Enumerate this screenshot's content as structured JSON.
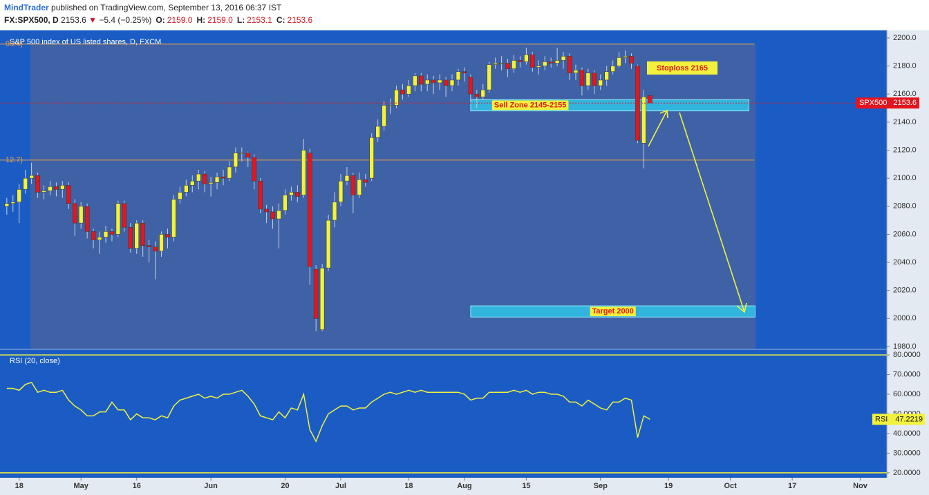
{
  "header": {
    "author": "MindTrader",
    "published": "published on TradingView.com, September 13, 2016 06:37 IST",
    "symbol": "FX:SPX500, D",
    "last": "2153.6",
    "arrow": "▼",
    "change": "−5.4 (−0.25%)",
    "ohlc": [
      {
        "label": "O:",
        "value": "2159.0"
      },
      {
        "label": "H:",
        "value": "2159.0"
      },
      {
        "label": "L:",
        "value": "2153.1"
      },
      {
        "label": "C:",
        "value": "2153.6"
      }
    ]
  },
  "annotations": {
    "stoploss": "Stoploss 2165"
  },
  "chart_data": [
    {
      "type": "candlestick",
      "title": "S&P 500 index of US listed shares, D, FXCM",
      "price_label": "SPX500",
      "up_color": "#f2f23c",
      "down_color": "#e3161f",
      "price_line_color": "#e3161f",
      "open": [
        2080,
        2082,
        2083,
        2092,
        2100,
        2102,
        2090,
        2091,
        2094,
        2092,
        2095,
        2082,
        2068,
        2080,
        2062,
        2056,
        2058,
        2062,
        2060,
        2082,
        2065,
        2050,
        2068,
        2052,
        2051,
        2048,
        2060,
        2058,
        2085,
        2090,
        2095,
        2098,
        2103,
        2096,
        2097,
        2101,
        2100,
        2108,
        2118,
        2118,
        2115,
        2098,
        2078,
        2076,
        2071,
        2077,
        2088,
        2090,
        2088,
        2118,
        2035,
        1992,
        2036,
        2070,
        2083,
        2098,
        2102,
        2088,
        2099,
        2100,
        2129,
        2137,
        2152,
        2152,
        2163,
        2160,
        2166,
        2173,
        2167,
        2170,
        2168,
        2170,
        2166,
        2170,
        2176,
        2172,
        2160,
        2158,
        2163,
        2181,
        2182,
        2182,
        2178,
        2184,
        2183,
        2188,
        2179,
        2180,
        2183,
        2182,
        2184,
        2187,
        2175,
        2177,
        2166,
        2175,
        2166,
        2170,
        2176,
        2180,
        2186,
        2187,
        2180,
        2125,
        2159.0
      ],
      "high": [
        2086,
        2088,
        2096,
        2106,
        2111,
        2104,
        2095,
        2098,
        2097,
        2098,
        2097,
        2085,
        2083,
        2082,
        2064,
        2062,
        2066,
        2064,
        2084,
        2084,
        2068,
        2070,
        2070,
        2056,
        2055,
        2062,
        2064,
        2088,
        2094,
        2099,
        2102,
        2106,
        2105,
        2101,
        2104,
        2106,
        2112,
        2122,
        2122,
        2119,
        2117,
        2100,
        2081,
        2080,
        2082,
        2092,
        2094,
        2095,
        2128,
        2121,
        2038,
        2039,
        2074,
        2090,
        2103,
        2108,
        2104,
        2104,
        2103,
        2132,
        2142,
        2155,
        2157,
        2166,
        2167,
        2170,
        2175,
        2175,
        2174,
        2173,
        2174,
        2172,
        2174,
        2178,
        2179,
        2174,
        2163,
        2167,
        2183,
        2186,
        2187,
        2185,
        2188,
        2187,
        2193,
        2190,
        2184,
        2187,
        2186,
        2193,
        2190,
        2189,
        2181,
        2179,
        2178,
        2177,
        2174,
        2180,
        2184,
        2190,
        2191,
        2189,
        2181,
        2163,
        2159.0
      ],
      "low": [
        2074,
        2076,
        2068,
        2089,
        2096,
        2086,
        2085,
        2088,
        2087,
        2086,
        2078,
        2059,
        2064,
        2057,
        2050,
        2046,
        2054,
        2055,
        2058,
        2062,
        2047,
        2046,
        2044,
        2040,
        2028,
        2044,
        2050,
        2055,
        2082,
        2087,
        2090,
        2092,
        2090,
        2087,
        2092,
        2095,
        2098,
        2104,
        2112,
        2108,
        2092,
        2075,
        2068,
        2064,
        2050,
        2074,
        2084,
        2083,
        2086,
        2024,
        1991,
        1991,
        2034,
        2065,
        2080,
        2095,
        2075,
        2086,
        2094,
        2098,
        2126,
        2134,
        2146,
        2150,
        2156,
        2158,
        2162,
        2162,
        2162,
        2160,
        2163,
        2158,
        2162,
        2166,
        2169,
        2155,
        2150,
        2156,
        2161,
        2178,
        2177,
        2172,
        2175,
        2179,
        2181,
        2176,
        2174,
        2177,
        2179,
        2180,
        2178,
        2170,
        2170,
        2159,
        2163,
        2160,
        2163,
        2166,
        2174,
        2179,
        2182,
        2178,
        2125,
        2107,
        2153.1
      ],
      "close": [
        2082,
        2083,
        2092,
        2100,
        2102,
        2090,
        2091,
        2094,
        2092,
        2095,
        2082,
        2068,
        2080,
        2062,
        2056,
        2058,
        2062,
        2060,
        2082,
        2065,
        2050,
        2068,
        2052,
        2051,
        2048,
        2060,
        2058,
        2085,
        2090,
        2095,
        2098,
        2103,
        2096,
        2097,
        2101,
        2100,
        2108,
        2118,
        2118,
        2115,
        2098,
        2078,
        2076,
        2071,
        2077,
        2088,
        2090,
        2087,
        2120,
        2037,
        2000,
        2036,
        2070,
        2083,
        2098,
        2102,
        2088,
        2099,
        2097,
        2129,
        2137,
        2152,
        2152,
        2163,
        2160,
        2166,
        2173,
        2167,
        2170,
        2168,
        2170,
        2166,
        2170,
        2176,
        2175,
        2160,
        2158,
        2163,
        2181,
        2182,
        2182,
        2178,
        2184,
        2183,
        2188,
        2179,
        2180,
        2183,
        2182,
        2184,
        2187,
        2175,
        2177,
        2166,
        2175,
        2166,
        2170,
        2176,
        2180,
        2186,
        2187,
        2182,
        2127,
        2158,
        2153.6
      ],
      "xlim": [
        -1.1,
        142.3
      ],
      "ylim": [
        1978.5,
        2205.4
      ],
      "yticks": [
        {
          "value": 1980,
          "label": "1980.0"
        },
        {
          "value": 2000,
          "label": "2000.0"
        },
        {
          "value": 2020,
          "label": "2020.0"
        },
        {
          "value": 2040,
          "label": "2040.0"
        },
        {
          "value": 2060,
          "label": "2060.0"
        },
        {
          "value": 2080,
          "label": "2080.0"
        },
        {
          "value": 2100,
          "label": "2100.0"
        },
        {
          "value": 2120,
          "label": "2120.0"
        },
        {
          "value": 2140,
          "label": "2140.0"
        },
        {
          "value": 2160,
          "label": "2160.0"
        },
        {
          "value": 2180,
          "label": "2180.0"
        },
        {
          "value": 2200,
          "label": "2200.0"
        }
      ],
      "levels": [
        {
          "label": "95.4)",
          "value": 2195.6,
          "color": "#e8a04c"
        },
        {
          "label": "12.7)",
          "value": 2112.9,
          "color": "#e8a04c"
        }
      ],
      "zones": [
        {
          "label": "Sell Zone 2145-2155",
          "from": 2148,
          "to": 2156,
          "start": 75,
          "end": 120
        },
        {
          "label": "Target 2000",
          "from": 2001,
          "to": 2009,
          "start": 75,
          "end": 121
        }
      ]
    },
    {
      "type": "line",
      "title": "RSI (20, close)",
      "series": [
        {
          "name": "RSI",
          "color": "#f2f23c",
          "values": [
            63,
            63,
            62,
            65,
            66,
            61,
            62,
            61,
            61,
            62,
            57,
            54,
            52,
            49,
            49,
            51,
            51,
            56,
            52,
            52,
            47,
            50,
            48,
            48,
            47,
            49,
            48,
            54,
            57,
            58,
            59,
            60,
            58,
            59,
            58,
            60,
            60,
            61,
            62,
            59,
            55,
            49,
            48,
            47,
            51,
            48,
            53,
            52,
            60,
            42,
            36,
            44,
            50,
            52,
            54,
            54,
            52,
            53,
            53,
            56,
            58,
            60,
            61,
            60,
            61,
            62,
            61,
            62,
            61,
            61,
            61,
            61,
            61,
            61,
            60,
            57,
            58,
            58,
            61,
            61,
            61,
            61,
            62,
            61,
            62,
            60,
            61,
            61,
            60,
            60,
            59,
            56,
            56,
            54,
            57,
            55,
            53,
            52,
            56,
            56,
            58,
            57,
            38,
            49,
            47.2219
          ]
        }
      ],
      "xlim": [
        -1.1,
        142.3
      ],
      "ylim": [
        18.2,
        82.5
      ],
      "yticks": [
        {
          "value": 20,
          "label": "20.0000"
        },
        {
          "value": 30,
          "label": "30.0000"
        },
        {
          "value": 40,
          "label": "40.0000"
        },
        {
          "value": 50,
          "label": "50.0000"
        },
        {
          "value": 60,
          "label": "60.0000"
        },
        {
          "value": 70,
          "label": "70.0000"
        },
        {
          "value": 80,
          "label": "80.0000"
        }
      ],
      "levels": [
        80,
        20
      ],
      "level_color": "#f2f23c",
      "xticks": [
        {
          "value": 2,
          "label": "18"
        },
        {
          "value": 12,
          "label": "May"
        },
        {
          "value": 21,
          "label": "16"
        },
        {
          "value": 33,
          "label": "Jun"
        },
        {
          "value": 45,
          "label": "20"
        },
        {
          "value": 54,
          "label": "Jul"
        },
        {
          "value": 65,
          "label": "18"
        },
        {
          "value": 74,
          "label": "Aug"
        },
        {
          "value": 84,
          "label": "15"
        },
        {
          "value": 96,
          "label": "Sep"
        },
        {
          "value": 107,
          "label": "19"
        },
        {
          "value": 117,
          "label": "Oct"
        },
        {
          "value": 127,
          "label": "17"
        },
        {
          "value": 138,
          "label": "Nov"
        }
      ]
    }
  ]
}
